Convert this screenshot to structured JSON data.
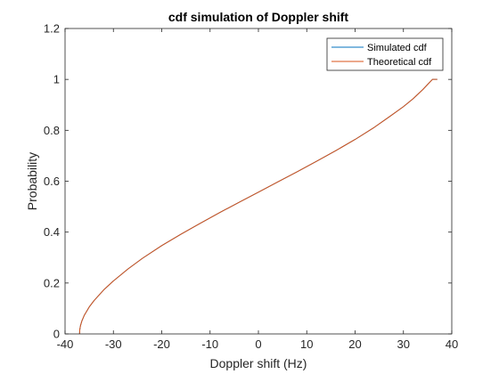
{
  "chart_data": {
    "type": "line",
    "title": "cdf simulation of Doppler shift",
    "xlabel": "Doppler shift (Hz)",
    "ylabel": "Probability",
    "xlim": [
      -40,
      40
    ],
    "ylim": [
      0,
      1.2
    ],
    "xticks": [
      -40,
      -30,
      -20,
      -10,
      0,
      10,
      20,
      30,
      40
    ],
    "xtick_labels": [
      "-40",
      "-30",
      "-20",
      "-10",
      "0",
      "10",
      "20",
      "30",
      "40"
    ],
    "yticks": [
      0,
      0.2,
      0.4,
      0.6,
      0.8,
      1,
      1.2
    ],
    "ytick_labels": [
      "0",
      "0.2",
      "0.4",
      "0.6",
      "0.8",
      "1",
      "1.2"
    ],
    "grid": false,
    "legend_position": "top-right",
    "series": [
      {
        "name": "Simulated cdf",
        "color": "#0072BD",
        "x": [
          -37,
          -36.95,
          -36.8,
          -36.5,
          -36,
          -35,
          -34,
          -32,
          -30,
          -27,
          -24,
          -20,
          -16,
          -12,
          -8,
          -4,
          0,
          4,
          8,
          12,
          16,
          20,
          24,
          27,
          30,
          32,
          34,
          35,
          36,
          36.5,
          36.8,
          36.95,
          37
        ],
        "y": [
          0,
          0.017,
          0.033,
          0.052,
          0.074,
          0.106,
          0.131,
          0.173,
          0.208,
          0.255,
          0.297,
          0.347,
          0.392,
          0.435,
          0.477,
          0.517,
          0.557,
          0.597,
          0.637,
          0.678,
          0.72,
          0.764,
          0.812,
          0.852,
          0.893,
          0.924,
          0.96,
          0.98,
          1.0,
          1.0,
          1.0,
          1.0,
          1.0
        ]
      },
      {
        "name": "Theoretical cdf",
        "color": "#D95319",
        "x": [
          -37,
          -36.95,
          -36.8,
          -36.5,
          -36,
          -35,
          -34,
          -32,
          -30,
          -27,
          -24,
          -20,
          -16,
          -12,
          -8,
          -4,
          0,
          4,
          8,
          12,
          16,
          20,
          24,
          27,
          30,
          32,
          34,
          35,
          36,
          36.5,
          36.8,
          36.95,
          37
        ],
        "y": [
          0,
          0.017,
          0.033,
          0.052,
          0.074,
          0.106,
          0.131,
          0.173,
          0.208,
          0.255,
          0.297,
          0.347,
          0.392,
          0.435,
          0.477,
          0.517,
          0.557,
          0.597,
          0.637,
          0.678,
          0.72,
          0.764,
          0.812,
          0.852,
          0.893,
          0.924,
          0.96,
          0.98,
          1.0,
          1.0,
          1.0,
          1.0,
          1.0
        ]
      }
    ]
  }
}
